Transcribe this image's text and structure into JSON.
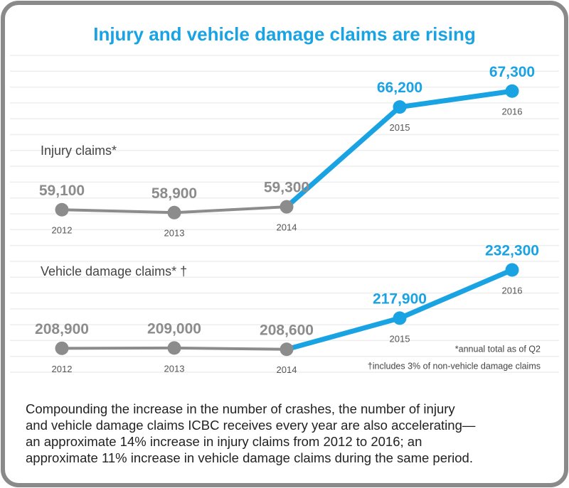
{
  "title": "Injury and vehicle damage claims are rising",
  "chart_data": [
    {
      "type": "line",
      "title": "Injury claims*",
      "categories": [
        "2012",
        "2013",
        "2014",
        "2015",
        "2016"
      ],
      "values": [
        59100,
        58900,
        59300,
        66200,
        67300
      ],
      "value_labels": [
        "59,100",
        "58,900",
        "59,300",
        "66,200",
        "67,300"
      ],
      "point_colors": [
        "#8c8c8c",
        "#8c8c8c",
        "#8c8c8c",
        "#1aa3e3",
        "#1aa3e3"
      ],
      "ylim": [
        57000,
        68000
      ]
    },
    {
      "type": "line",
      "title": "Vehicle damage claims* †",
      "categories": [
        "2012",
        "2013",
        "2014",
        "2015",
        "2016"
      ],
      "values": [
        208900,
        209000,
        208600,
        217900,
        232300
      ],
      "value_labels": [
        "208,900",
        "209,000",
        "208,600",
        "217,900",
        "232,300"
      ],
      "point_colors": [
        "#8c8c8c",
        "#8c8c8c",
        "#8c8c8c",
        "#1aa3e3",
        "#1aa3e3"
      ],
      "ylim": [
        206000,
        234000
      ]
    }
  ],
  "footnotes": [
    "*annual total as of Q2",
    "†includes 3% of non-vehicle damage claims"
  ],
  "caption": [
    "Compounding the increase in the number of crashes, the number of injury",
    "and vehicle damage claims ICBC receives every year are also accelerating—",
    "an approximate 14% increase in injury claims from 2012 to 2016; an",
    "approximate 11% increase in vehicle damage claims during the same period."
  ]
}
